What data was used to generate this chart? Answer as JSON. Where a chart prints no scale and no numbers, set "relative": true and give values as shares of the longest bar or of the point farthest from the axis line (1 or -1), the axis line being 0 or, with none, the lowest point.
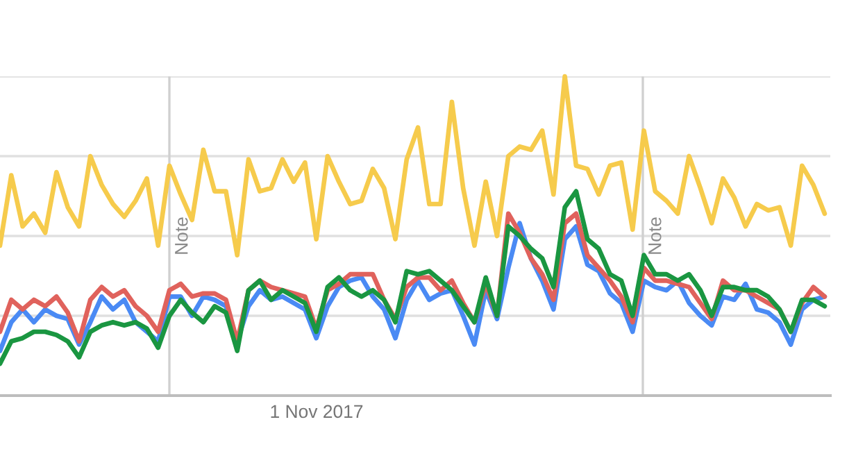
{
  "chart_data": {
    "type": "line",
    "relative": true,
    "grid": "y",
    "legend": false,
    "marker": "none",
    "line_style": "solid",
    "categories": [
      null,
      null,
      null,
      null,
      null,
      null,
      null,
      null,
      null,
      null,
      null,
      null,
      null,
      null,
      null,
      null,
      null,
      null,
      null,
      null,
      null,
      null,
      null,
      null,
      null,
      null,
      null,
      null,
      null,
      null,
      null,
      null,
      null,
      null,
      null,
      null,
      null,
      null,
      null,
      null,
      null,
      null,
      null,
      null,
      null,
      null,
      null,
      null,
      null,
      null,
      null,
      null,
      null,
      null,
      null,
      null,
      null,
      null,
      null,
      null,
      null,
      null,
      null,
      null,
      null,
      null,
      null,
      null,
      null,
      null,
      null,
      null,
      null,
      null
    ],
    "annotations": [
      "1 Nov 2017",
      "Note",
      "Note"
    ],
    "series": [
      {
        "color": "#f6cb4c",
        "values": [
          0.47,
          0.69,
          0.53,
          0.57,
          0.51,
          0.7,
          0.59,
          0.53,
          0.75,
          0.66,
          0.6,
          0.56,
          0.61,
          0.68,
          0.47,
          0.72,
          0.63,
          0.55,
          0.77,
          0.64,
          0.64,
          0.44,
          0.74,
          0.64,
          0.65,
          0.74,
          0.67,
          0.73,
          0.49,
          0.75,
          0.67,
          0.6,
          0.61,
          0.71,
          0.65,
          0.49,
          0.74,
          0.84,
          0.6,
          0.6,
          0.92,
          0.65,
          0.47,
          0.67,
          0.5,
          0.75,
          0.78,
          0.77,
          0.83,
          0.63,
          1.0,
          0.72,
          0.71,
          0.63,
          0.72,
          0.73,
          0.52,
          0.83,
          0.64,
          0.61,
          0.57,
          0.75,
          0.65,
          0.54,
          0.68,
          0.62,
          0.53,
          0.6,
          0.58,
          0.59,
          0.47,
          0.72,
          0.66,
          0.57
        ]
      },
      {
        "color": "#4a8af4",
        "values": [
          0.14,
          0.23,
          0.27,
          0.23,
          0.27,
          0.25,
          0.24,
          0.16,
          0.23,
          0.31,
          0.27,
          0.3,
          0.23,
          0.2,
          0.17,
          0.31,
          0.31,
          0.25,
          0.31,
          0.3,
          0.28,
          0.17,
          0.28,
          0.33,
          0.3,
          0.31,
          0.29,
          0.27,
          0.18,
          0.28,
          0.34,
          0.36,
          0.37,
          0.31,
          0.27,
          0.18,
          0.3,
          0.36,
          0.3,
          0.32,
          0.33,
          0.25,
          0.16,
          0.33,
          0.24,
          0.4,
          0.54,
          0.43,
          0.36,
          0.27,
          0.49,
          0.53,
          0.41,
          0.39,
          0.32,
          0.29,
          0.2,
          0.36,
          0.34,
          0.33,
          0.36,
          0.29,
          0.25,
          0.22,
          0.31,
          0.3,
          0.35,
          0.27,
          0.26,
          0.23,
          0.16,
          0.27,
          0.3,
          0.31
        ]
      },
      {
        "color": "#e0625c",
        "values": [
          0.2,
          0.3,
          0.27,
          0.3,
          0.28,
          0.31,
          0.26,
          0.17,
          0.3,
          0.34,
          0.31,
          0.33,
          0.28,
          0.25,
          0.2,
          0.33,
          0.35,
          0.31,
          0.32,
          0.32,
          0.3,
          0.17,
          0.33,
          0.36,
          0.34,
          0.33,
          0.32,
          0.31,
          0.21,
          0.33,
          0.35,
          0.38,
          0.38,
          0.38,
          0.3,
          0.24,
          0.34,
          0.37,
          0.37,
          0.33,
          0.36,
          0.29,
          0.23,
          0.35,
          0.25,
          0.57,
          0.51,
          0.43,
          0.38,
          0.3,
          0.54,
          0.57,
          0.44,
          0.4,
          0.36,
          0.31,
          0.23,
          0.4,
          0.36,
          0.36,
          0.35,
          0.34,
          0.29,
          0.24,
          0.36,
          0.33,
          0.33,
          0.31,
          0.29,
          0.27,
          0.2,
          0.29,
          0.34,
          0.31
        ]
      },
      {
        "color": "#1a9641",
        "values": [
          0.1,
          0.17,
          0.18,
          0.2,
          0.2,
          0.19,
          0.17,
          0.12,
          0.2,
          0.22,
          0.23,
          0.22,
          0.23,
          0.21,
          0.15,
          0.25,
          0.3,
          0.26,
          0.23,
          0.28,
          0.26,
          0.14,
          0.33,
          0.36,
          0.3,
          0.33,
          0.31,
          0.29,
          0.2,
          0.34,
          0.37,
          0.33,
          0.31,
          0.33,
          0.3,
          0.23,
          0.39,
          0.38,
          0.39,
          0.36,
          0.33,
          0.28,
          0.23,
          0.37,
          0.25,
          0.53,
          0.5,
          0.46,
          0.43,
          0.34,
          0.59,
          0.64,
          0.49,
          0.46,
          0.38,
          0.36,
          0.25,
          0.44,
          0.38,
          0.38,
          0.36,
          0.38,
          0.33,
          0.25,
          0.34,
          0.34,
          0.33,
          0.33,
          0.31,
          0.27,
          0.2,
          0.3,
          0.3,
          0.28
        ]
      }
    ]
  }
}
